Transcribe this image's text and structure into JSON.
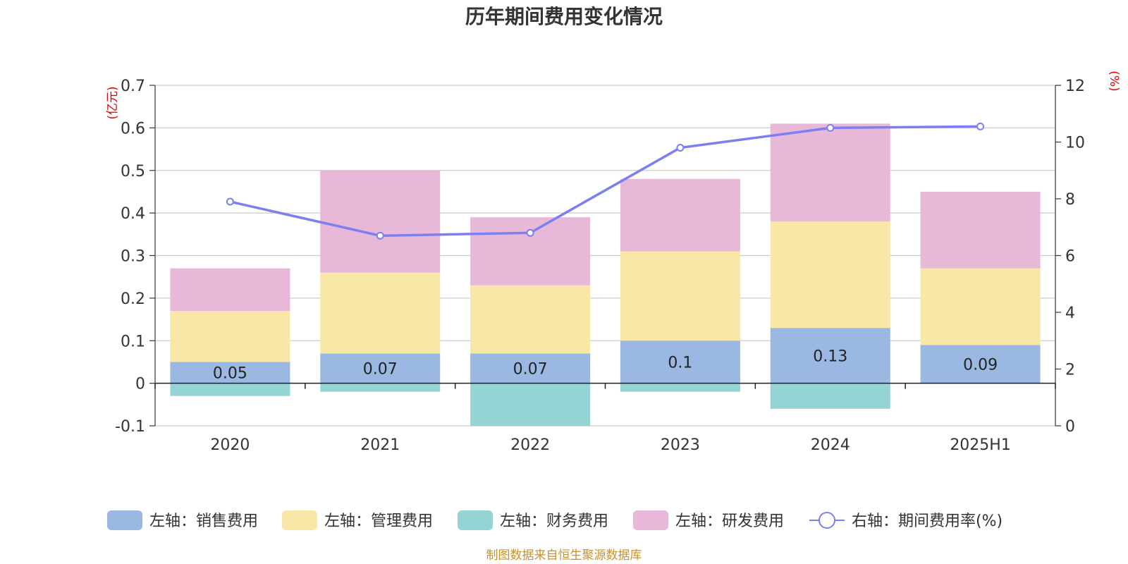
{
  "chart_data": {
    "type": "bar",
    "title": "历年期间费用变化情况",
    "categories": [
      "2020",
      "2021",
      "2022",
      "2023",
      "2024",
      "2025H1"
    ],
    "left_axis": {
      "unit": "(亿元)",
      "ylim": [
        -0.1,
        0.7
      ],
      "ticks": [
        -0.1,
        0,
        0.1,
        0.2,
        0.3,
        0.4,
        0.5,
        0.6,
        0.7
      ],
      "tick_labels": [
        "-0.1",
        "0",
        "0.1",
        "0.2",
        "0.3",
        "0.4",
        "0.5",
        "0.6",
        "0.7"
      ]
    },
    "right_axis": {
      "unit": "(%)",
      "ylim": [
        0,
        12
      ],
      "ticks": [
        0,
        2,
        4,
        6,
        8,
        10,
        12
      ],
      "tick_labels": [
        "0",
        "2",
        "4",
        "6",
        "8",
        "10",
        "12"
      ]
    },
    "series": [
      {
        "name": "左轴：销售费用",
        "type": "bar",
        "stack": true,
        "color": "#9bb8e2",
        "values": [
          0.05,
          0.07,
          0.07,
          0.1,
          0.13,
          0.09
        ],
        "data_labels": [
          "0.05",
          "0.07",
          "0.07",
          "0.1",
          "0.13",
          "0.09"
        ]
      },
      {
        "name": "左轴：管理费用",
        "type": "bar",
        "stack": true,
        "color": "#f8e7a6",
        "values": [
          0.12,
          0.19,
          0.16,
          0.21,
          0.25,
          0.18
        ]
      },
      {
        "name": "左轴：财务费用",
        "type": "bar",
        "stack": true,
        "color": "#95d4d4",
        "values": [
          -0.03,
          -0.02,
          -0.1,
          -0.02,
          -0.06,
          0
        ]
      },
      {
        "name": "左轴：研发费用",
        "type": "bar",
        "stack": true,
        "color": "#e8b8d8",
        "values": [
          0.1,
          0.24,
          0.16,
          0.17,
          0.23,
          0.18
        ]
      },
      {
        "name": "右轴：期间费用率(%)",
        "type": "line",
        "axis": "right",
        "color": "#7b7ff0",
        "values": [
          7.9,
          6.7,
          6.8,
          9.8,
          10.5,
          10.55
        ]
      }
    ],
    "legend_position": "bottom",
    "grid": true,
    "source": "制图数据来自恒生聚源数据库"
  }
}
